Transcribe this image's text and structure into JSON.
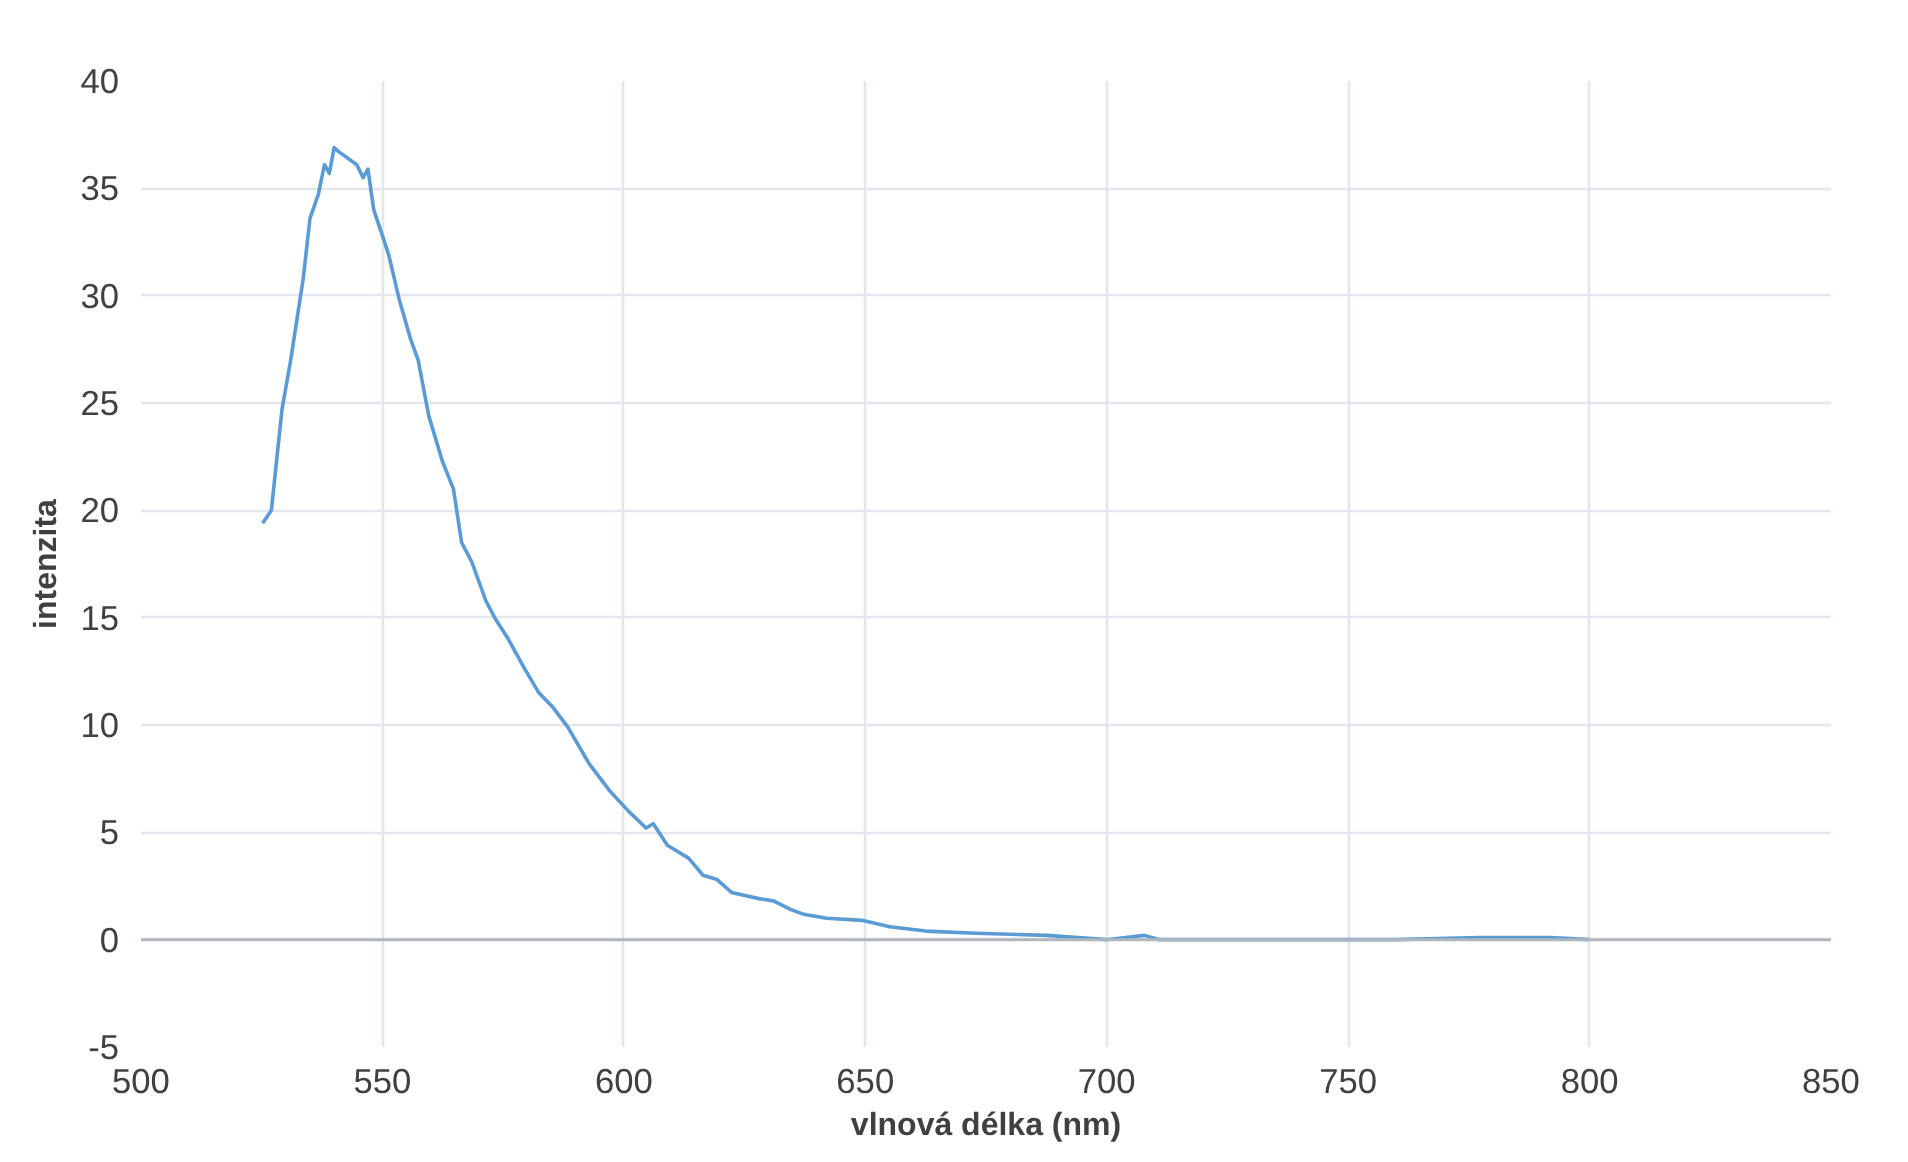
{
  "chart_data": {
    "type": "line",
    "xlabel": "vlnová délka (nm)",
    "ylabel": "intenzita",
    "x": [
      525.2,
      527,
      529.2,
      531,
      533.6,
      535,
      536.7,
      538,
      539,
      540,
      541,
      544.7,
      546,
      547,
      548.2,
      550,
      551.3,
      553.5,
      555.8,
      557.4,
      559.6,
      562.4,
      564.7,
      566.4,
      568.5,
      571.4,
      573.5,
      575.8,
      579.5,
      582.4,
      585.4,
      588.4,
      592.8,
      597.2,
      600.9,
      604.6,
      606.1,
      609,
      613.4,
      616.4,
      619.3,
      622.3,
      628.2,
      631.1,
      634.6,
      637,
      642,
      649.3,
      655.1,
      662.5,
      672.8,
      687.5,
      700,
      707.8,
      711,
      724,
      740,
      760,
      777,
      792,
      800
    ],
    "series": [
      {
        "color": "#5b9bd5",
        "values": [
          19.4,
          20,
          24.7,
          27,
          30.8,
          33.6,
          34.7,
          36.1,
          35.7,
          36.9,
          36.7,
          36.1,
          35.5,
          35.9,
          34,
          32.8,
          31.9,
          29.8,
          28,
          27,
          24.4,
          22.3,
          21,
          18.5,
          17.6,
          15.8,
          14.9,
          14.1,
          12.6,
          11.5,
          10.8,
          9.9,
          8.2,
          6.9,
          6.0,
          5.2,
          5.4,
          4.4,
          3.8,
          3.0,
          2.8,
          2.2,
          1.9,
          1.8,
          1.4,
          1.2,
          1.0,
          0.9,
          0.6,
          0.4,
          0.3,
          0.2,
          0,
          0.2,
          0,
          0,
          0,
          0,
          0.1,
          0.1,
          0
        ]
      }
    ],
    "xlim": [
      500,
      850
    ],
    "xticks": [
      500,
      550,
      600,
      650,
      700,
      750,
      800,
      850
    ],
    "ylim": [
      -5,
      40
    ],
    "yticks": [
      -5,
      0,
      5,
      10,
      15,
      20,
      25,
      30,
      35,
      40
    ],
    "grid": true,
    "line_style": "solid",
    "marker": "none"
  }
}
